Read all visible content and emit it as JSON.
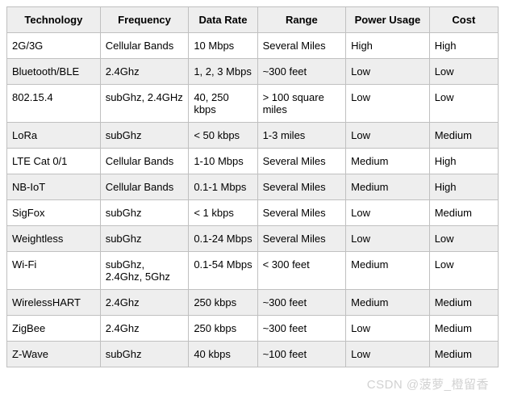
{
  "table": {
    "columns": [
      "Technology",
      "Frequency",
      "Data Rate",
      "Range",
      "Power Usage",
      "Cost"
    ],
    "column_widths": [
      "19%",
      "18%",
      "14%",
      "18%",
      "17%",
      "14%"
    ],
    "header_bg": "#eeeeee",
    "row_alt_bg": "#eeeeee",
    "row_bg": "#ffffff",
    "border_color": "#c0c0c0",
    "text_color": "#000000",
    "font_size": 13,
    "rows": [
      [
        "2G/3G",
        "Cellular Bands",
        "10 Mbps",
        "Several Miles",
        "High",
        "High"
      ],
      [
        "Bluetooth/BLE",
        "2.4Ghz",
        "1, 2, 3 Mbps",
        "~300 feet",
        "Low",
        "Low"
      ],
      [
        "802.15.4",
        "subGhz, 2.4GHz",
        "40, 250 kbps",
        "> 100 square miles",
        "Low",
        "Low"
      ],
      [
        "LoRa",
        "subGhz",
        "< 50 kbps",
        "1-3 miles",
        "Low",
        "Medium"
      ],
      [
        "LTE Cat 0/1",
        "Cellular Bands",
        "1-10 Mbps",
        "Several Miles",
        "Medium",
        "High"
      ],
      [
        "NB-IoT",
        "Cellular Bands",
        "0.1-1 Mbps",
        "Several Miles",
        "Medium",
        "High"
      ],
      [
        "SigFox",
        "subGhz",
        "< 1 kbps",
        "Several Miles",
        "Low",
        "Medium"
      ],
      [
        "Weightless",
        "subGhz",
        "0.1-24 Mbps",
        "Several Miles",
        "Low",
        "Low"
      ],
      [
        "Wi-Fi",
        "subGhz, 2.4Ghz, 5Ghz",
        "0.1-54 Mbps",
        "< 300 feet",
        "Medium",
        "Low"
      ],
      [
        "WirelessHART",
        "2.4Ghz",
        "250 kbps",
        "~300 feet",
        "Medium",
        "Medium"
      ],
      [
        "ZigBee",
        "2.4Ghz",
        "250 kbps",
        "~300 feet",
        "Low",
        "Medium"
      ],
      [
        "Z-Wave",
        "subGhz",
        "40 kbps",
        "~100 feet",
        "Low",
        "Medium"
      ]
    ]
  },
  "watermark": "CSDN @菠萝_橙留香"
}
